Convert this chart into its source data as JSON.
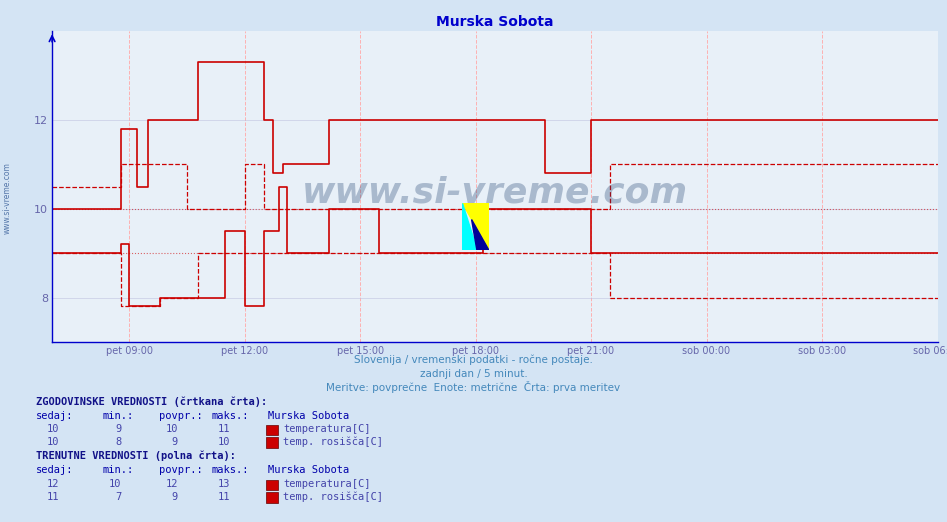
{
  "title": "Murska Sobota",
  "title_color": "#0000cc",
  "bg_color": "#d4e4f4",
  "plot_bg_color": "#e8f0f8",
  "line_color": "#cc0000",
  "axis_color": "#0000cc",
  "xlabel_color": "#6666aa",
  "footer_color": "#4488bb",
  "ylim": [
    7.0,
    14.0
  ],
  "yticks": [
    8,
    10,
    12
  ],
  "x_tick_labels": [
    "pet 09:00",
    "pet 12:00",
    "pet 15:00",
    "pet 18:00",
    "pet 21:00",
    "sob 00:00",
    "sob 03:00",
    "sob 06:00"
  ],
  "x_tick_positions": [
    2,
    5,
    8,
    11,
    14,
    17,
    20,
    23
  ],
  "footer_line1": "Slovenija / vremenski podatki - ročne postaje.",
  "footer_line2": "zadnji dan / 5 minut.",
  "footer_line3": "Meritve: povprečne  Enote: metrične  Črta: prva meritev",
  "table_hist_header": "ZGODOVINSKE VREDNOSTI (črtkana črta):",
  "table_curr_header": "TRENUTNE VREDNOSTI (polna črta):",
  "table_col_headers": [
    "sedaj:",
    "min.:",
    "povpr.:",
    "maks.:",
    "Murska Sobota"
  ],
  "hist_temp": [
    10,
    9,
    10,
    11,
    "temperatura[C]"
  ],
  "hist_dew": [
    10,
    8,
    9,
    10,
    "temp. rosišča[C]"
  ],
  "curr_temp": [
    12,
    10,
    12,
    13,
    "temperatura[C]"
  ],
  "curr_dew": [
    11,
    7,
    9,
    11,
    "temp. rosišča[C]"
  ],
  "watermark": "www.si-vreme.com",
  "watermark_color": "#1a3a6a",
  "note_left": "www.si-vreme.com"
}
